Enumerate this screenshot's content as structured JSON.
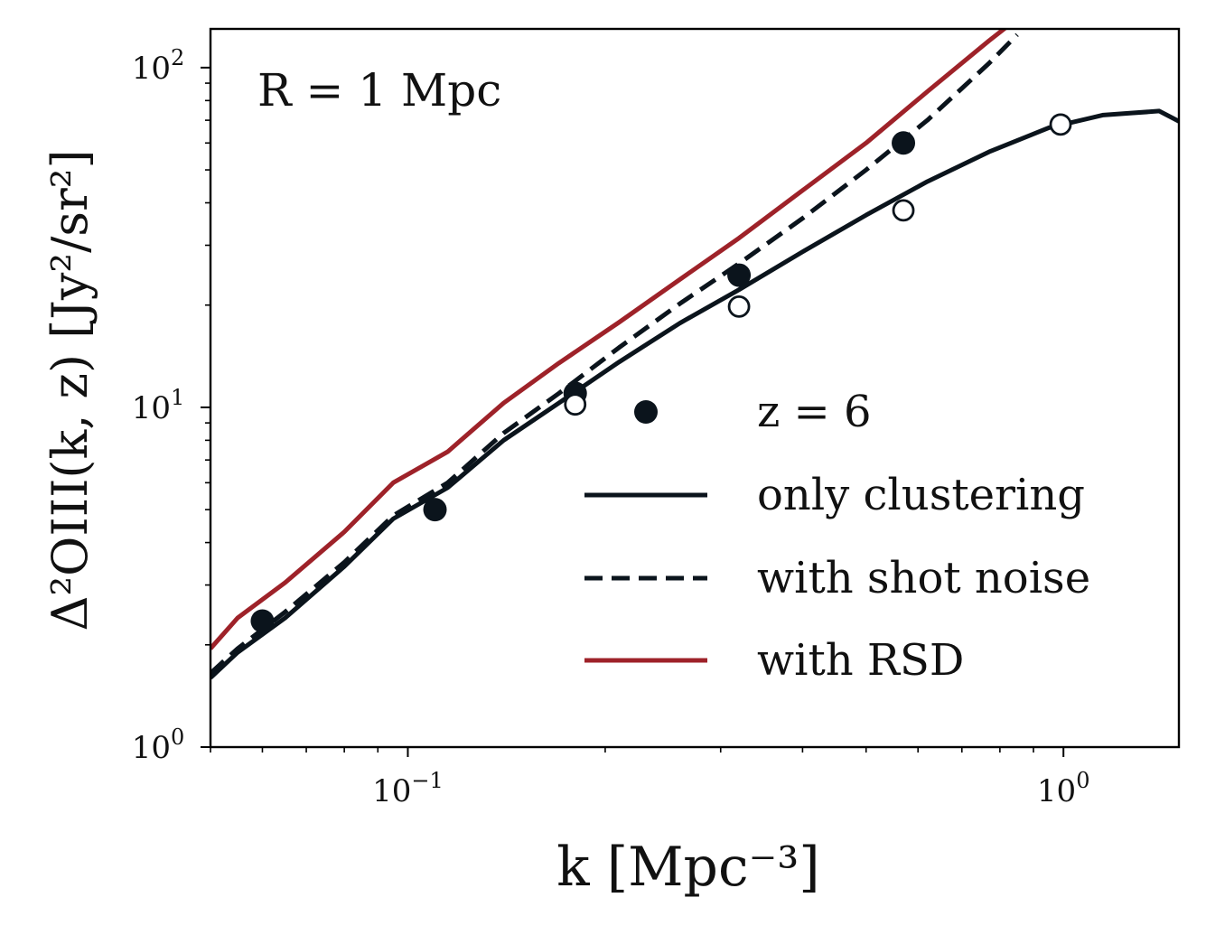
{
  "chart_data": {
    "type": "line",
    "annotation": "R = 1 Mpc",
    "xlabel": "k [Mpc⁻³]",
    "ylabel": "Δ²OIII(k, z) [Jy²/sr²]",
    "xscale": "log",
    "yscale": "log",
    "xlim": [
      0.05,
      1.5
    ],
    "ylim": [
      1,
      130
    ],
    "x_ticks": [
      {
        "value": 0.1,
        "base": "10",
        "exp": "−1"
      },
      {
        "value": 1,
        "base": "10",
        "exp": "0"
      }
    ],
    "y_ticks": [
      {
        "value": 1,
        "base": "10",
        "exp": "0"
      },
      {
        "value": 10,
        "base": "10",
        "exp": "1"
      },
      {
        "value": 100,
        "base": "10",
        "exp": "2"
      }
    ],
    "legend_position": "lower right",
    "grid": false,
    "colors": {
      "black": "#0b141c",
      "red": "#9e2229"
    },
    "series": [
      {
        "name": "z = 6",
        "kind": "points",
        "marker": "filled-circle",
        "color": "#0b141c",
        "x": [
          0.06,
          0.11,
          0.18,
          0.32,
          0.57
        ],
        "y": [
          2.35,
          5.0,
          11.0,
          24.5,
          60.0
        ]
      },
      {
        "name": "",
        "kind": "points",
        "marker": "open-circle",
        "color": "#0b141c",
        "x": [
          0.18,
          0.32,
          0.57,
          0.99
        ],
        "y": [
          10.2,
          19.8,
          38.0,
          68.0
        ]
      },
      {
        "name": "only clustering",
        "kind": "line",
        "style": "solid",
        "color": "#0b141c",
        "x": [
          0.05,
          0.055,
          0.065,
          0.08,
          0.095,
          0.115,
          0.14,
          0.17,
          0.21,
          0.26,
          0.32,
          0.4,
          0.5,
          0.62,
          0.77,
          0.95,
          1.15,
          1.4,
          1.5
        ],
        "y": [
          1.6,
          1.9,
          2.4,
          3.4,
          4.7,
          5.8,
          8.0,
          10.3,
          13.6,
          17.7,
          22.2,
          28.7,
          36.8,
          46.2,
          56.5,
          66.5,
          72.5,
          74.5,
          69.5
        ]
      },
      {
        "name": "with shot noise",
        "kind": "line",
        "style": "dashed",
        "color": "#0b141c",
        "x": [
          0.05,
          0.055,
          0.065,
          0.08,
          0.095,
          0.115,
          0.14,
          0.17,
          0.21,
          0.26,
          0.32,
          0.4,
          0.5,
          0.62,
          0.77,
          0.85
        ],
        "y": [
          1.65,
          1.95,
          2.5,
          3.5,
          4.8,
          6.0,
          8.4,
          11.0,
          15.0,
          20.2,
          26.5,
          36.0,
          50.0,
          70.0,
          103.0,
          125.0
        ]
      },
      {
        "name": "with RSD",
        "kind": "line",
        "style": "solid",
        "color": "#9e2229",
        "x": [
          0.05,
          0.055,
          0.065,
          0.08,
          0.095,
          0.115,
          0.14,
          0.17,
          0.21,
          0.26,
          0.32,
          0.4,
          0.5,
          0.62,
          0.77,
          0.82
        ],
        "y": [
          1.95,
          2.4,
          3.05,
          4.3,
          6.0,
          7.4,
          10.3,
          13.5,
          17.8,
          23.8,
          31.5,
          43.5,
          60.0,
          85.0,
          120.0,
          132.0
        ]
      }
    ]
  }
}
